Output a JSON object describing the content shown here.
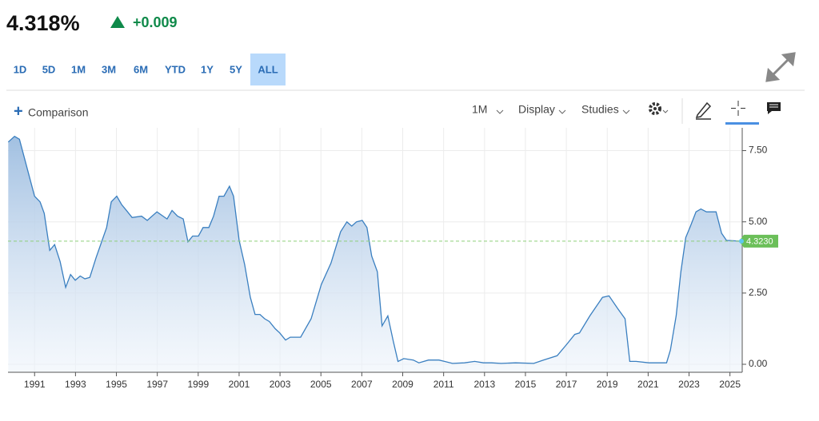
{
  "header": {
    "price": "4.318%",
    "change": "+0.009"
  },
  "ranges": [
    "1D",
    "5D",
    "1M",
    "3M",
    "6M",
    "YTD",
    "1Y",
    "5Y",
    "ALL"
  ],
  "active_range": "ALL",
  "toolbar": {
    "comparison": "Comparison",
    "interval": "1M",
    "display": "Display",
    "studies": "Studies"
  },
  "chart_data": {
    "type": "area",
    "color": "#3a7fc0",
    "x": [
      1989.71,
      1990.02,
      1990.26,
      1991.0,
      1991.27,
      1991.47,
      1991.74,
      1991.98,
      1992.25,
      1992.52,
      1992.76,
      1992.99,
      1993.23,
      1993.46,
      1993.7,
      1994.01,
      1994.52,
      1994.75,
      1995.02,
      1995.26,
      1995.49,
      1995.77,
      1996.23,
      1996.51,
      1996.98,
      1997.48,
      1997.72,
      1997.99,
      1998.27,
      1998.5,
      1998.73,
      1999.01,
      1999.24,
      1999.52,
      1999.75,
      2000.02,
      2000.26,
      2000.53,
      2000.73,
      2001.0,
      2001.27,
      2001.55,
      2001.78,
      2002.02,
      2002.25,
      2002.48,
      2002.76,
      2002.99,
      2003.27,
      2003.5,
      2004.01,
      2004.52,
      2005.02,
      2005.49,
      2005.96,
      2006.27,
      2006.51,
      2006.74,
      2007.02,
      2007.25,
      2007.48,
      2007.76,
      2007.99,
      2008.27,
      2008.54,
      2008.77,
      2009.05,
      2009.52,
      2009.79,
      2010.26,
      2010.77,
      2011.04,
      2011.43,
      2012.02,
      2012.52,
      2012.95,
      2013.34,
      2013.81,
      2014.52,
      2015.41,
      2015.88,
      2016.55,
      2017.02,
      2017.41,
      2017.64,
      2018.15,
      2018.77,
      2019.09,
      2019.52,
      2019.87,
      2020.1,
      2020.41,
      2021.04,
      2021.35,
      2021.9,
      2022.09,
      2022.37,
      2022.6,
      2022.84,
      2023.07,
      2023.34,
      2023.58,
      2023.85,
      2024.32,
      2024.59,
      2024.83,
      2025.34,
      2025.57
    ],
    "values": [
      7.8,
      8.0,
      7.9,
      5.9,
      5.7,
      5.3,
      4.0,
      4.2,
      3.6,
      2.7,
      3.15,
      2.95,
      3.1,
      3.0,
      3.05,
      3.75,
      4.8,
      5.7,
      5.9,
      5.6,
      5.4,
      5.15,
      5.2,
      5.05,
      5.35,
      5.1,
      5.4,
      5.2,
      5.1,
      4.3,
      4.5,
      4.5,
      4.8,
      4.8,
      5.2,
      5.9,
      5.9,
      6.25,
      5.9,
      4.35,
      3.5,
      2.35,
      1.75,
      1.75,
      1.6,
      1.5,
      1.25,
      1.1,
      0.85,
      0.95,
      0.95,
      1.6,
      2.8,
      3.55,
      4.65,
      5.0,
      4.85,
      5.0,
      5.05,
      4.8,
      3.8,
      3.25,
      1.35,
      1.7,
      0.8,
      0.1,
      0.2,
      0.15,
      0.05,
      0.15,
      0.15,
      0.1,
      0.03,
      0.05,
      0.1,
      0.05,
      0.05,
      0.03,
      0.05,
      0.03,
      0.15,
      0.3,
      0.7,
      1.05,
      1.1,
      1.7,
      2.35,
      2.4,
      1.95,
      1.6,
      0.1,
      0.1,
      0.05,
      0.05,
      0.05,
      0.5,
      1.7,
      3.25,
      4.45,
      4.85,
      5.35,
      5.45,
      5.35,
      5.35,
      4.6,
      4.35,
      4.33,
      4.32
    ],
    "xlim": [
      1989.7,
      2025.6
    ],
    "ylim": [
      -0.28,
      8.3
    ],
    "xticks": [
      1991,
      1993,
      1995,
      1997,
      1999,
      2001,
      2003,
      2005,
      2007,
      2009,
      2011,
      2013,
      2015,
      2017,
      2019,
      2021,
      2023,
      2025
    ],
    "yticks": [
      {
        "value": 0,
        "label": "0.00"
      },
      {
        "value": 2.5,
        "label": "2.50"
      },
      {
        "value": 5,
        "label": "5.00"
      },
      {
        "value": 7.5,
        "label": "7.50"
      }
    ],
    "grid": true,
    "reference_line": {
      "value": 4.323,
      "label": "4.3230"
    }
  }
}
